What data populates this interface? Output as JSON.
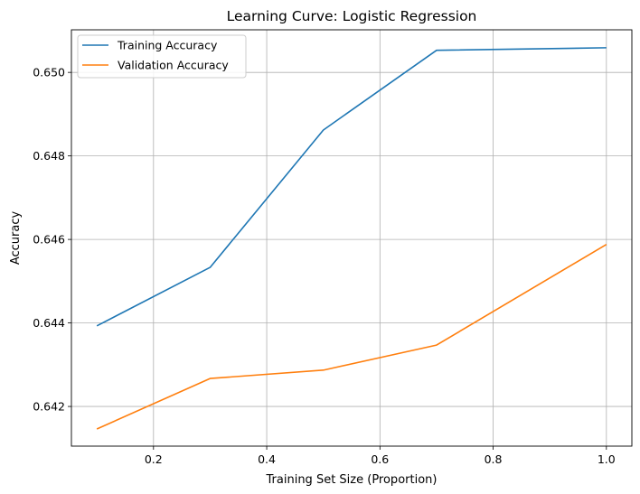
{
  "chart_data": {
    "type": "line",
    "title": "Learning Curve: Logistic Regression",
    "xlabel": "Training Set Size (Proportion)",
    "ylabel": "Accuracy",
    "xlim": [
      0.055,
      1.045
    ],
    "ylim": [
      0.64105,
      0.65102
    ],
    "xticks": [
      0.2,
      0.4,
      0.6,
      0.8,
      1.0
    ],
    "xtick_labels": [
      "0.2",
      "0.4",
      "0.6",
      "0.8",
      "1.0"
    ],
    "yticks": [
      0.642,
      0.644,
      0.646,
      0.648,
      0.65
    ],
    "ytick_labels": [
      "0.642",
      "0.644",
      "0.646",
      "0.648",
      "0.650"
    ],
    "grid": true,
    "legend_position": "top-left",
    "x": [
      0.1,
      0.3,
      0.5,
      0.7,
      1.0
    ],
    "series": [
      {
        "name": "Training Accuracy",
        "color": "#1f77b4",
        "values": [
          0.64393,
          0.64533,
          0.64862,
          0.65053,
          0.65059
        ]
      },
      {
        "name": "Validation Accuracy",
        "color": "#ff7f0e",
        "values": [
          0.64146,
          0.64267,
          0.64287,
          0.64347,
          0.64588
        ]
      }
    ]
  }
}
